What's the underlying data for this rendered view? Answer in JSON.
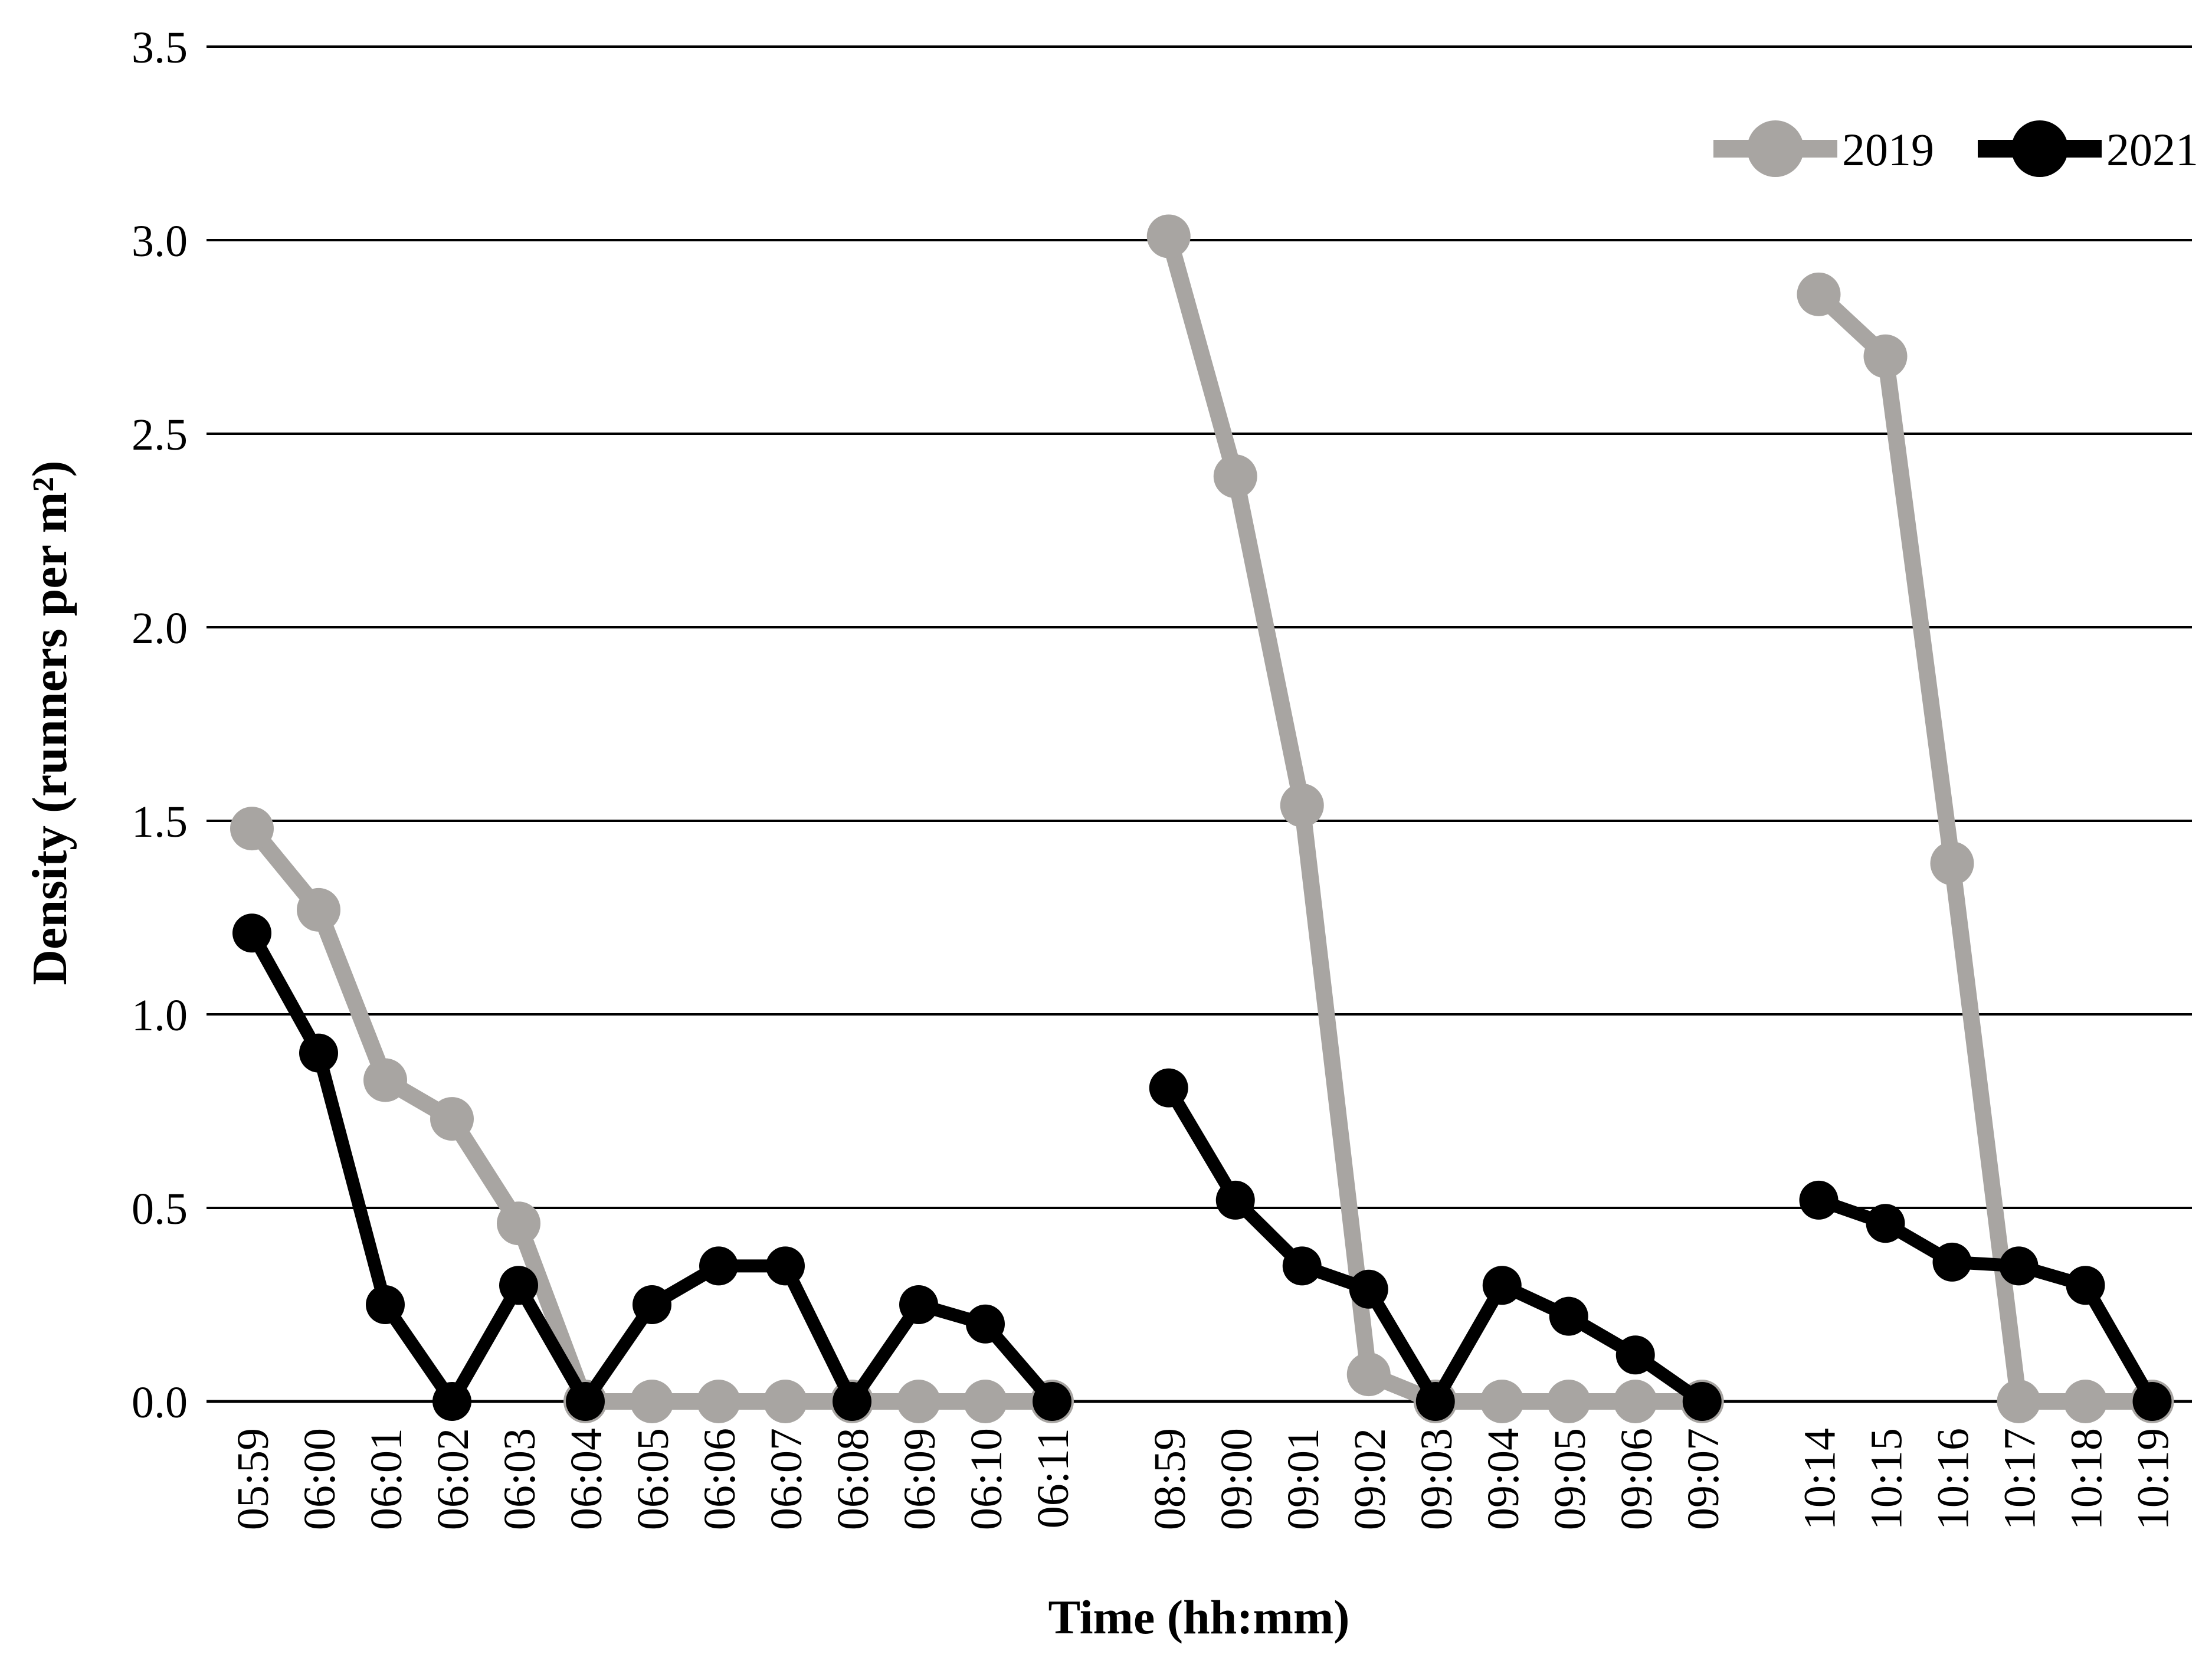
{
  "chart_data": {
    "type": "line",
    "title": "",
    "xlabel": "Time (hh:mm)",
    "ylabel": "Density (runners per m²)",
    "ylim": [
      0,
      3.5
    ],
    "yticks": [
      0.0,
      0.5,
      1.0,
      1.5,
      2.0,
      2.5,
      3.0,
      3.5
    ],
    "ytick_decimals": 1,
    "grid": "horizontal",
    "legend_position": "top-right",
    "categories": [
      "05:59",
      "06:00",
      "06:01",
      "06:02",
      "06:03",
      "06:04",
      "06:05",
      "06:06",
      "06:07",
      "06:08",
      "06:09",
      "06:10",
      "06:11",
      "08:59",
      "09:00",
      "09:01",
      "09:02",
      "09:03",
      "09:04",
      "09:05",
      "09:06",
      "09:07",
      "10:14",
      "10:15",
      "10:16",
      "10:17",
      "10:18",
      "10:19"
    ],
    "group_sizes": [
      13,
      9,
      6
    ],
    "group_gap_slots": 0.75,
    "series": [
      {
        "name": "2019",
        "color": "#a8a5a2",
        "values": [
          1.48,
          1.27,
          0.83,
          0.73,
          0.46,
          0,
          0,
          0,
          0,
          0,
          0,
          0,
          0,
          3.01,
          2.39,
          1.54,
          0.07,
          0,
          0,
          0,
          0,
          0,
          2.86,
          2.7,
          1.39,
          0,
          0,
          0
        ]
      },
      {
        "name": "2021",
        "color": "#000000",
        "values": [
          1.21,
          0.9,
          0.25,
          0,
          0.3,
          0,
          0.25,
          0.35,
          0.35,
          0,
          0.25,
          0.2,
          0,
          0.81,
          0.52,
          0.35,
          0.29,
          0,
          0.3,
          0.22,
          0.12,
          0,
          0.52,
          0.46,
          0.36,
          0.35,
          0.3,
          0
        ]
      }
    ]
  }
}
